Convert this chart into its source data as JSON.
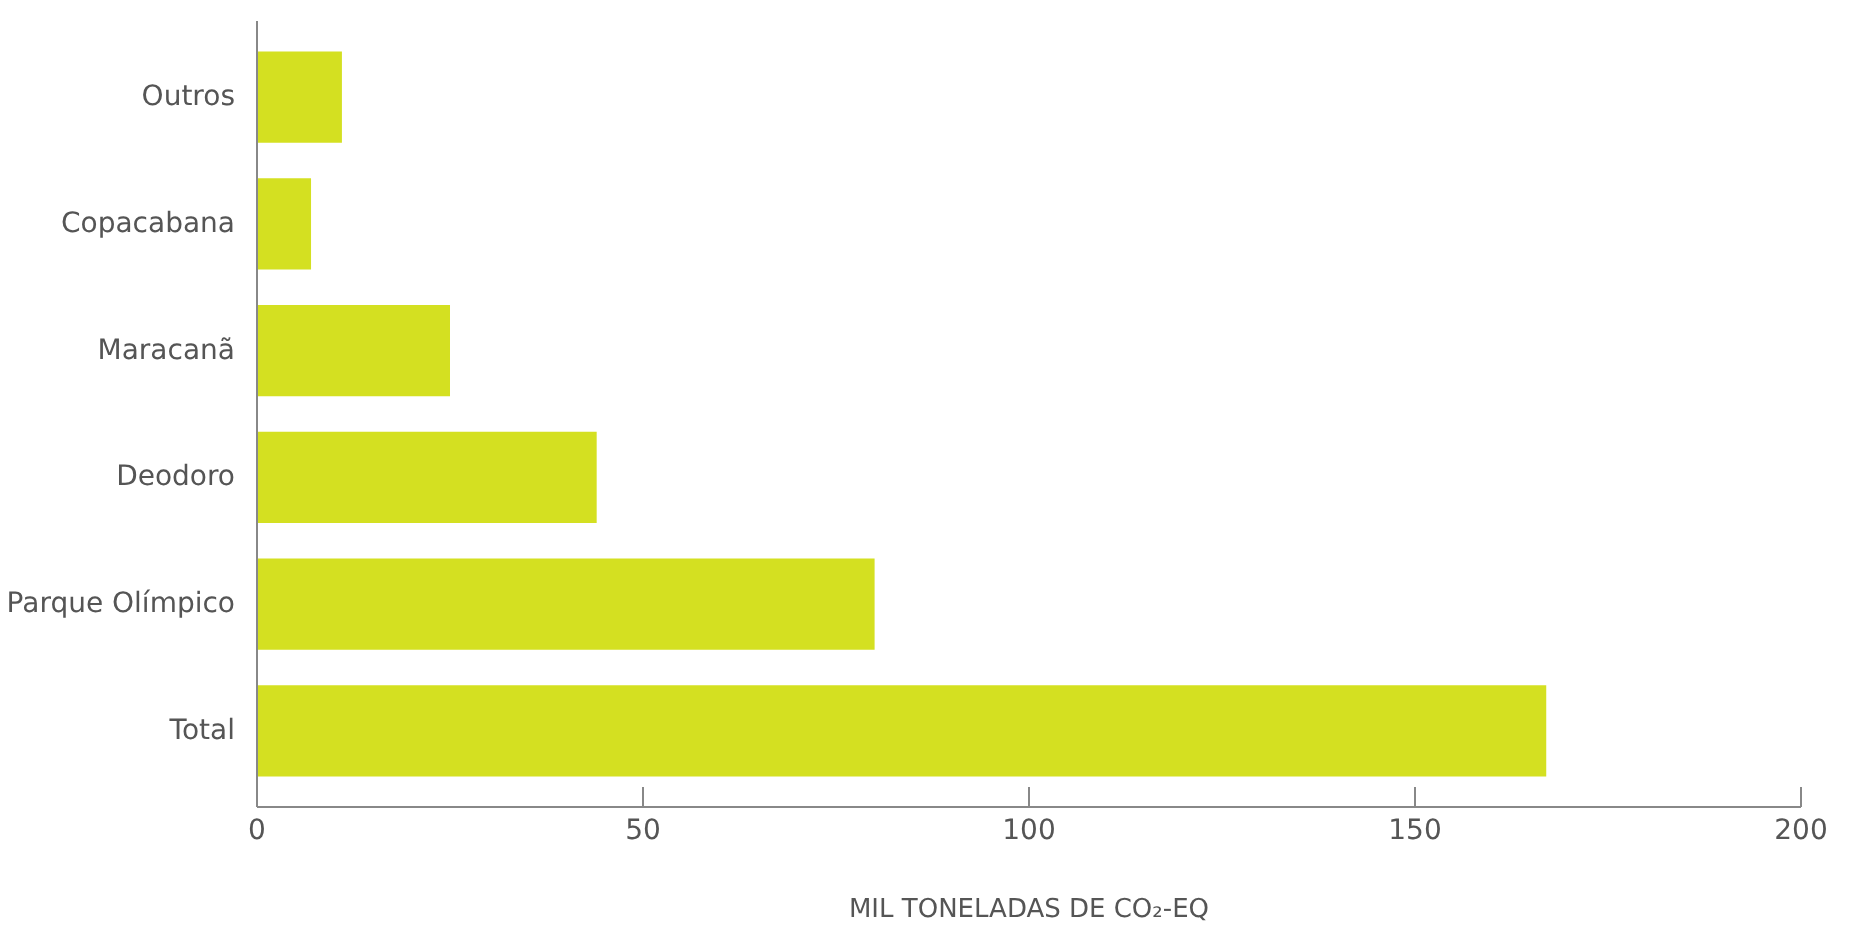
{
  "chart_data": {
    "type": "bar",
    "orientation": "horizontal",
    "xlabel": "MIL TONELADAS DE CO₂-EQ",
    "categories": [
      "Outros",
      "Copacabana",
      "Maracanã",
      "Deodoro",
      "Parque Olímpico",
      "Total"
    ],
    "values": [
      11,
      7,
      25,
      44,
      80,
      167
    ],
    "color": "#d4e021",
    "xlim": [
      0,
      200
    ],
    "xticks": [
      0,
      50,
      100,
      150,
      200
    ],
    "grid": false
  }
}
